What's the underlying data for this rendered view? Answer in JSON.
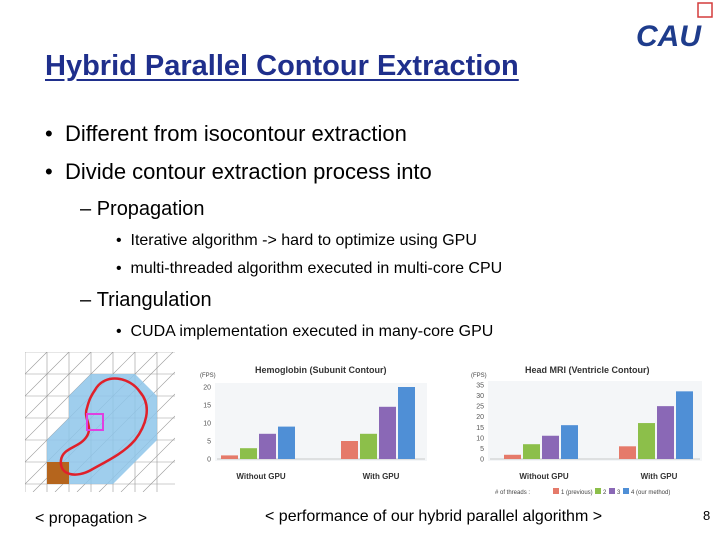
{
  "slide": {
    "title": "Hybrid Parallel Contour Extraction",
    "logo_text": "CAU",
    "bullets": [
      "Different from isocontour extraction",
      "Divide contour extraction process into"
    ],
    "sub1": "Propagation",
    "sub1_items": [
      "Iterative algorithm -> hard to optimize using GPU",
      "multi-threaded algorithm executed in multi-core CPU"
    ],
    "sub2": "Triangulation",
    "sub2_items": [
      "CUDA implementation executed in many-core GPU"
    ],
    "caption_left": "< propagation >",
    "caption_right": "< performance of our hybrid parallel algorithm >",
    "page_number": "8"
  },
  "chart_data": [
    {
      "type": "bar",
      "title": "Hemoglobin (Subunit Contour)",
      "ylabel": "(FPS)",
      "categories": [
        "Without GPU",
        "With GPU"
      ],
      "ylim": [
        0,
        20
      ],
      "yticks": [
        0,
        5,
        10,
        15,
        20
      ],
      "series": [
        {
          "name": "1 (previous)",
          "values": [
            1,
            5
          ]
        },
        {
          "name": "2",
          "values": [
            3,
            7
          ]
        },
        {
          "name": "3",
          "values": [
            7,
            14.5
          ]
        },
        {
          "name": "4 (our method)",
          "values": [
            9,
            20
          ]
        }
      ]
    },
    {
      "type": "bar",
      "title": "Head MRI (Ventricle Contour)",
      "ylabel": "(FPS)",
      "categories": [
        "Without GPU",
        "With GPU"
      ],
      "ylim": [
        0,
        35
      ],
      "yticks": [
        0,
        5,
        10,
        15,
        20,
        25,
        30,
        35
      ],
      "series": [
        {
          "name": "1 (previous)",
          "values": [
            2,
            6
          ]
        },
        {
          "name": "2",
          "values": [
            7,
            17
          ]
        },
        {
          "name": "3",
          "values": [
            11,
            25
          ]
        },
        {
          "name": "4 (our method)",
          "values": [
            16,
            32
          ]
        }
      ]
    }
  ],
  "legend": {
    "prefix": "# of threads :",
    "labels": [
      "1 (previous)",
      "2",
      "3",
      "4 (our method)"
    ],
    "colors": [
      "#e57a6a",
      "#8cbf4a",
      "#8a68b6",
      "#4f8fd6"
    ]
  }
}
